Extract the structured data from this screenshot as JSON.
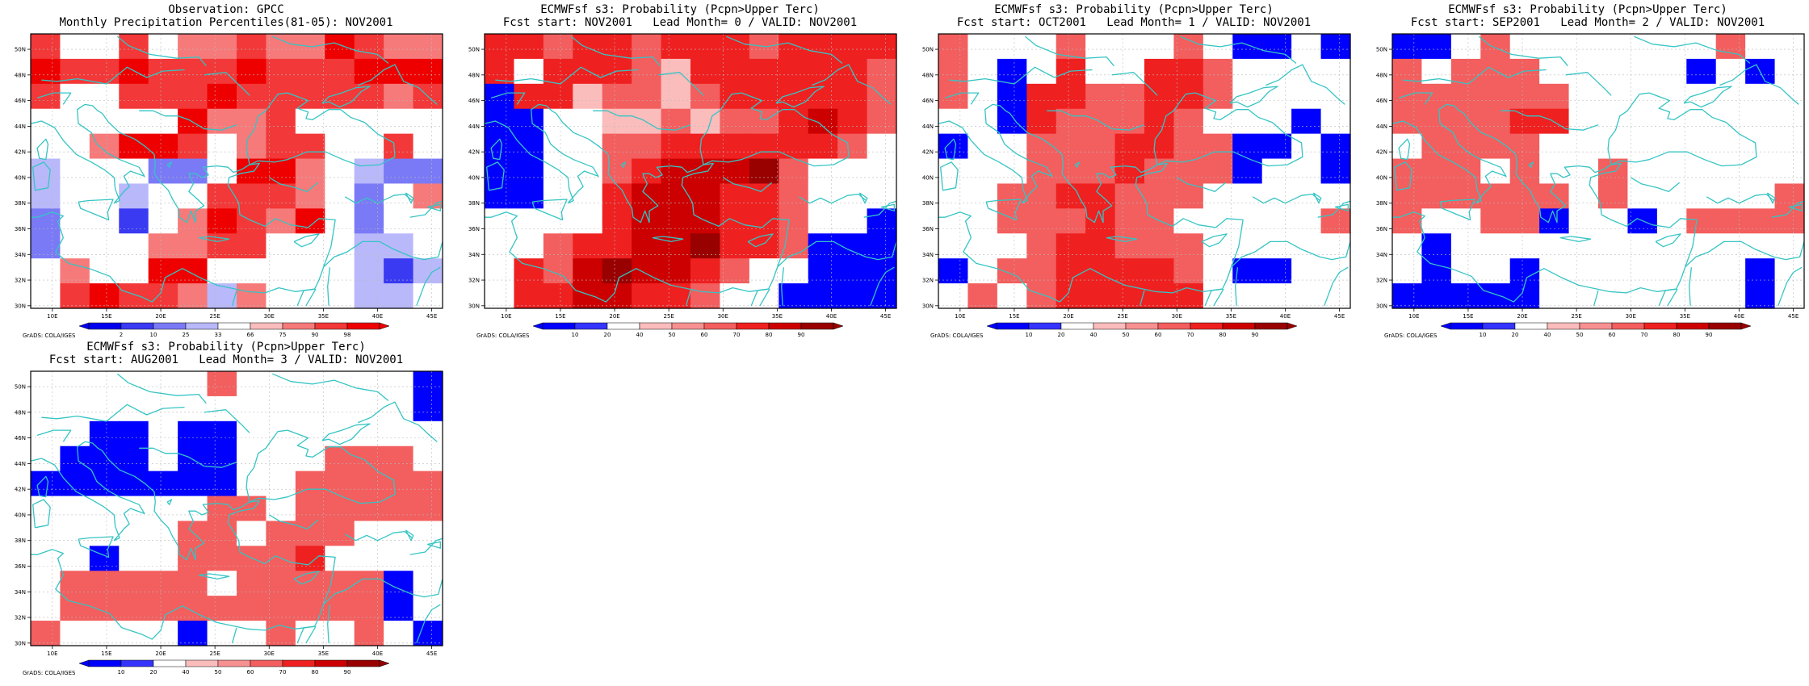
{
  "colors": {
    "coast": "#36c4c4",
    "grid": "#bbbbbb",
    "obs_scale": [
      "#0000ee",
      "#3a3af2",
      "#7a7af6",
      "#b8b8fa",
      "#ffffff",
      "#fabcbc",
      "#f67a7a",
      "#f23838",
      "#ee0000"
    ],
    "prob_scale": [
      "#0000ff",
      "#3434fc",
      "#ffffff",
      "#fbbcbc",
      "#f79090",
      "#f35e5e",
      "#ef2020",
      "#cc0000",
      "#990000"
    ]
  },
  "axes": {
    "xticks": [
      "10E",
      "15E",
      "20E",
      "25E",
      "30E",
      "35E",
      "40E",
      "45E"
    ],
    "yticks": [
      "50N",
      "48N",
      "46N",
      "44N",
      "42N",
      "40N",
      "38N",
      "36N",
      "34N",
      "32N",
      "30N"
    ]
  },
  "credit": "GrADS: COLA/IGES",
  "panels": [
    {
      "id": "obs",
      "title1": "Observation: GPCC",
      "title2": "Monthly Precipitation Percentiles(81-05): NOV2001",
      "legend_kind": "obs",
      "legend_labels": [
        "2",
        "10",
        "25",
        "33",
        "66",
        "75",
        "90",
        "98"
      ],
      "grid_values": [
        [
          7,
          4,
          4,
          7,
          4,
          6,
          6,
          7,
          6,
          6,
          8,
          7,
          6,
          6
        ],
        [
          8,
          7,
          7,
          8,
          7,
          7,
          7,
          8,
          7,
          7,
          7,
          8,
          8,
          8
        ],
        [
          7,
          4,
          4,
          7,
          7,
          7,
          8,
          7,
          7,
          7,
          7,
          7,
          6,
          7
        ],
        [
          4,
          4,
          4,
          4,
          4,
          8,
          6,
          6,
          7,
          4,
          4,
          4,
          4,
          4
        ],
        [
          4,
          4,
          6,
          8,
          8,
          7,
          4,
          6,
          7,
          7,
          4,
          4,
          7,
          4
        ],
        [
          3,
          4,
          4,
          4,
          2,
          2,
          4,
          8,
          8,
          6,
          4,
          3,
          2,
          2
        ],
        [
          3,
          4,
          4,
          3,
          4,
          4,
          7,
          7,
          7,
          6,
          4,
          2,
          4,
          6
        ],
        [
          2,
          4,
          4,
          1,
          4,
          6,
          8,
          7,
          6,
          8,
          4,
          2,
          4,
          4
        ],
        [
          2,
          4,
          4,
          4,
          6,
          6,
          7,
          7,
          4,
          4,
          4,
          3,
          3,
          4
        ],
        [
          4,
          6,
          4,
          4,
          8,
          8,
          4,
          4,
          4,
          4,
          4,
          3,
          1,
          3
        ],
        [
          4,
          7,
          8,
          7,
          7,
          6,
          3,
          6,
          4,
          4,
          4,
          3,
          3,
          4
        ]
      ]
    },
    {
      "id": "lead0",
      "title1": "ECMWFsf s3: Probability (Pcpn>Upper Terc)",
      "title2": "Fcst start: NOV2001   Lead Month= 0 / VALID: NOV2001",
      "legend_kind": "prob",
      "legend_labels": [
        "10",
        "20",
        "40",
        "50",
        "60",
        "70",
        "80",
        "90"
      ],
      "grid_values": [
        [
          6,
          6,
          5,
          6,
          6,
          5,
          6,
          6,
          6,
          5,
          6,
          6,
          6,
          6
        ],
        [
          6,
          2,
          6,
          6,
          6,
          5,
          3,
          6,
          6,
          6,
          6,
          6,
          6,
          5
        ],
        [
          0,
          6,
          6,
          3,
          5,
          5,
          3,
          5,
          6,
          6,
          6,
          6,
          6,
          5
        ],
        [
          0,
          0,
          2,
          2,
          3,
          3,
          5,
          3,
          5,
          5,
          6,
          7,
          6,
          5
        ],
        [
          0,
          0,
          2,
          2,
          5,
          5,
          6,
          6,
          6,
          6,
          6,
          6,
          5,
          2
        ],
        [
          0,
          0,
          2,
          2,
          5,
          6,
          7,
          7,
          7,
          8,
          5,
          2,
          2,
          2
        ],
        [
          0,
          0,
          2,
          2,
          6,
          7,
          7,
          7,
          6,
          6,
          5,
          2,
          2,
          2
        ],
        [
          2,
          2,
          2,
          2,
          6,
          7,
          7,
          7,
          6,
          6,
          5,
          2,
          2,
          0
        ],
        [
          2,
          2,
          5,
          6,
          6,
          7,
          7,
          8,
          6,
          6,
          5,
          0,
          0,
          0
        ],
        [
          2,
          6,
          5,
          7,
          8,
          7,
          7,
          6,
          5,
          2,
          2,
          0,
          0,
          0
        ],
        [
          2,
          6,
          6,
          7,
          7,
          6,
          6,
          5,
          2,
          2,
          0,
          0,
          0,
          0
        ]
      ]
    },
    {
      "id": "lead1",
      "title1": "ECMWFsf s3: Probability (Pcpn>Upper Terc)",
      "title2": "Fcst start: OCT2001   Lead Month= 1 / VALID: NOV2001",
      "legend_kind": "prob",
      "legend_labels": [
        "10",
        "20",
        "40",
        "50",
        "60",
        "70",
        "80",
        "90"
      ],
      "grid_values": [
        [
          5,
          2,
          2,
          2,
          5,
          2,
          2,
          2,
          5,
          2,
          0,
          0,
          2,
          0
        ],
        [
          5,
          2,
          0,
          2,
          6,
          2,
          2,
          6,
          6,
          5,
          2,
          2,
          2,
          2
        ],
        [
          5,
          2,
          0,
          6,
          6,
          5,
          5,
          6,
          6,
          5,
          2,
          2,
          2,
          2
        ],
        [
          2,
          2,
          0,
          6,
          5,
          5,
          5,
          6,
          5,
          2,
          2,
          2,
          0,
          2
        ],
        [
          0,
          2,
          2,
          5,
          5,
          5,
          6,
          6,
          5,
          5,
          0,
          0,
          2,
          0
        ],
        [
          2,
          2,
          2,
          5,
          5,
          5,
          6,
          5,
          5,
          5,
          0,
          2,
          2,
          0
        ],
        [
          2,
          2,
          5,
          5,
          6,
          6,
          5,
          5,
          5,
          2,
          2,
          2,
          2,
          2
        ],
        [
          2,
          2,
          5,
          5,
          5,
          6,
          5,
          5,
          2,
          2,
          2,
          2,
          2,
          5
        ],
        [
          2,
          2,
          2,
          5,
          6,
          6,
          5,
          5,
          5,
          2,
          2,
          2,
          2,
          2
        ],
        [
          0,
          2,
          5,
          5,
          6,
          6,
          6,
          6,
          5,
          2,
          0,
          0,
          2,
          2
        ],
        [
          2,
          5,
          2,
          5,
          6,
          6,
          6,
          6,
          6,
          2,
          2,
          2,
          2,
          2
        ]
      ]
    },
    {
      "id": "lead2",
      "title1": "ECMWFsf s3: Probability (Pcpn>Upper Terc)",
      "title2": "Fcst start: SEP2001   Lead Month= 2 / VALID: NOV2001",
      "legend_kind": "prob",
      "legend_labels": [
        "10",
        "20",
        "40",
        "50",
        "60",
        "70",
        "80",
        "90"
      ],
      "grid_values": [
        [
          0,
          0,
          2,
          5,
          2,
          2,
          2,
          2,
          2,
          2,
          2,
          5,
          2,
          2
        ],
        [
          5,
          2,
          5,
          5,
          5,
          2,
          2,
          2,
          2,
          2,
          0,
          2,
          0,
          2
        ],
        [
          5,
          5,
          5,
          5,
          5,
          5,
          2,
          2,
          2,
          2,
          2,
          2,
          2,
          2
        ],
        [
          5,
          5,
          5,
          5,
          6,
          6,
          2,
          2,
          2,
          2,
          2,
          2,
          2,
          2
        ],
        [
          2,
          5,
          5,
          5,
          5,
          2,
          2,
          2,
          2,
          2,
          2,
          2,
          2,
          2
        ],
        [
          5,
          5,
          5,
          2,
          5,
          2,
          2,
          5,
          2,
          2,
          2,
          2,
          2,
          2
        ],
        [
          5,
          5,
          5,
          5,
          5,
          5,
          2,
          5,
          2,
          2,
          2,
          2,
          2,
          5
        ],
        [
          5,
          2,
          2,
          5,
          5,
          0,
          2,
          2,
          0,
          2,
          5,
          5,
          5,
          5
        ],
        [
          2,
          0,
          2,
          2,
          2,
          2,
          2,
          2,
          2,
          2,
          2,
          2,
          2,
          2
        ],
        [
          2,
          0,
          2,
          2,
          0,
          2,
          2,
          2,
          2,
          2,
          2,
          2,
          0,
          2
        ],
        [
          0,
          0,
          0,
          0,
          0,
          2,
          2,
          2,
          2,
          2,
          2,
          2,
          0,
          2
        ]
      ]
    },
    {
      "id": "lead3",
      "title1": "ECMWFsf s3: Probability (Pcpn>Upper Terc)",
      "title2": "Fcst start: AUG2001   Lead Month= 3 / VALID: NOV2001",
      "legend_kind": "prob",
      "legend_labels": [
        "10",
        "20",
        "40",
        "50",
        "60",
        "70",
        "80",
        "90"
      ],
      "grid_values": [
        [
          2,
          2,
          2,
          2,
          2,
          2,
          5,
          2,
          2,
          2,
          2,
          2,
          2,
          0
        ],
        [
          2,
          2,
          2,
          2,
          2,
          2,
          2,
          2,
          2,
          2,
          2,
          2,
          2,
          0
        ],
        [
          2,
          2,
          0,
          0,
          2,
          0,
          0,
          2,
          2,
          2,
          2,
          2,
          2,
          2
        ],
        [
          2,
          0,
          0,
          0,
          2,
          0,
          0,
          2,
          2,
          2,
          5,
          5,
          5,
          2
        ],
        [
          0,
          0,
          0,
          0,
          0,
          0,
          0,
          2,
          2,
          5,
          5,
          5,
          5,
          5
        ],
        [
          2,
          2,
          2,
          2,
          2,
          2,
          5,
          5,
          2,
          5,
          5,
          5,
          5,
          5
        ],
        [
          2,
          2,
          2,
          2,
          2,
          5,
          5,
          2,
          5,
          5,
          5,
          2,
          2,
          2
        ],
        [
          2,
          2,
          0,
          2,
          2,
          5,
          5,
          5,
          5,
          6,
          2,
          2,
          2,
          2
        ],
        [
          2,
          5,
          5,
          5,
          5,
          5,
          2,
          5,
          5,
          5,
          5,
          5,
          0,
          2
        ],
        [
          2,
          5,
          5,
          5,
          5,
          5,
          5,
          5,
          5,
          5,
          5,
          5,
          0,
          2
        ],
        [
          5,
          2,
          2,
          2,
          2,
          0,
          2,
          2,
          5,
          2,
          2,
          5,
          2,
          0
        ]
      ]
    }
  ]
}
